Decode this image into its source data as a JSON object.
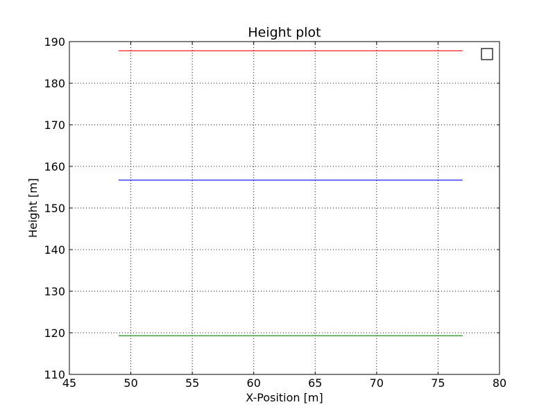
{
  "chart_data": {
    "type": "line",
    "title": "Height plot",
    "xlabel": "X-Position [m]",
    "ylabel": "Height [m]",
    "xlim": [
      45,
      80
    ],
    "ylim": [
      110,
      190
    ],
    "xticks": [
      45,
      50,
      55,
      60,
      65,
      70,
      75,
      80
    ],
    "yticks": [
      110,
      120,
      130,
      140,
      150,
      160,
      170,
      180,
      190
    ],
    "grid": true,
    "legend": {
      "placement": "top-right",
      "entries": []
    },
    "series": [
      {
        "color": "#ff0000",
        "x": [
          49,
          77
        ],
        "y": [
          187.8,
          187.8
        ]
      },
      {
        "color": "#0000ff",
        "x": [
          49,
          77
        ],
        "y": [
          156.7,
          156.7
        ]
      },
      {
        "color": "#008000",
        "x": [
          49,
          77
        ],
        "y": [
          119.3,
          119.3
        ]
      }
    ]
  }
}
